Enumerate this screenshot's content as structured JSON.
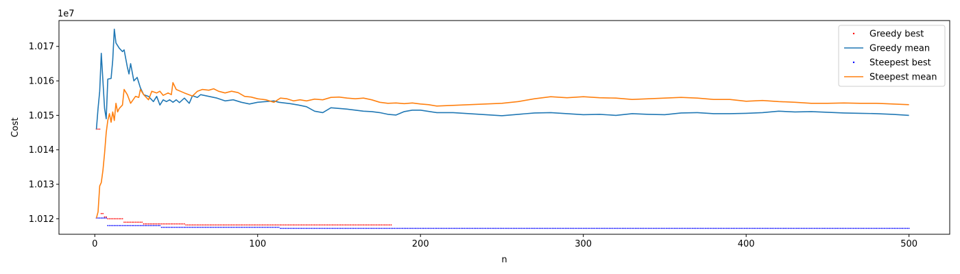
{
  "chart_data": {
    "type": "line",
    "title": "",
    "xlabel": "n",
    "ylabel": "Cost",
    "y_offset_label": "1e7",
    "xlim": [
      -22,
      525
    ],
    "ylim": [
      10115500,
      10177500
    ],
    "x_ticks": [
      0,
      100,
      200,
      300,
      400,
      500
    ],
    "x_tick_labels": [
      "0",
      "100",
      "200",
      "300",
      "400",
      "500"
    ],
    "y_ticks": [
      10120000,
      10130000,
      10140000,
      10150000,
      10160000,
      10170000
    ],
    "y_tick_labels": [
      "1.012",
      "1.013",
      "1.014",
      "1.015",
      "1.016",
      "1.017"
    ],
    "grid": false,
    "legend_position": "top-right",
    "series": [
      {
        "name": "Greedy best",
        "kind": "scatter",
        "color": "#ff0000",
        "steps": [
          [
            1,
            10146000
          ],
          [
            4,
            10121500
          ],
          [
            6,
            10120500
          ],
          [
            8,
            10120000
          ],
          [
            18,
            10119000
          ],
          [
            30,
            10118500
          ],
          [
            56,
            10118200
          ],
          [
            182,
            10118200
          ]
        ]
      },
      {
        "name": "Greedy mean",
        "kind": "line",
        "color": "#1f77b4",
        "points": [
          [
            1,
            10146000
          ],
          [
            2,
            10152000
          ],
          [
            3,
            10157000
          ],
          [
            4,
            10168000
          ],
          [
            5,
            10160000
          ],
          [
            6,
            10152000
          ],
          [
            7,
            10149000
          ],
          [
            8,
            10160500
          ],
          [
            10,
            10160700
          ],
          [
            11,
            10166000
          ],
          [
            12,
            10175000
          ],
          [
            13,
            10171000
          ],
          [
            15,
            10169500
          ],
          [
            17,
            10168500
          ],
          [
            18,
            10169000
          ],
          [
            20,
            10164000
          ],
          [
            21,
            10162000
          ],
          [
            22,
            10165000
          ],
          [
            24,
            10160000
          ],
          [
            26,
            10161000
          ],
          [
            28,
            10158000
          ],
          [
            30,
            10156000
          ],
          [
            33,
            10155500
          ],
          [
            36,
            10154000
          ],
          [
            38,
            10155500
          ],
          [
            40,
            10153000
          ],
          [
            42,
            10154500
          ],
          [
            44,
            10154000
          ],
          [
            46,
            10154500
          ],
          [
            48,
            10153800
          ],
          [
            50,
            10154500
          ],
          [
            52,
            10153700
          ],
          [
            55,
            10155000
          ],
          [
            58,
            10153500
          ],
          [
            60,
            10155700
          ],
          [
            63,
            10155200
          ],
          [
            65,
            10156000
          ],
          [
            70,
            10155500
          ],
          [
            75,
            10155000
          ],
          [
            80,
            10154200
          ],
          [
            85,
            10154500
          ],
          [
            90,
            10153800
          ],
          [
            95,
            10153300
          ],
          [
            100,
            10153800
          ],
          [
            105,
            10154000
          ],
          [
            110,
            10154200
          ],
          [
            113,
            10153800
          ],
          [
            120,
            10153400
          ],
          [
            125,
            10153000
          ],
          [
            130,
            10152500
          ],
          [
            135,
            10151200
          ],
          [
            140,
            10150800
          ],
          [
            145,
            10152200
          ],
          [
            150,
            10152000
          ],
          [
            155,
            10151800
          ],
          [
            160,
            10151500
          ],
          [
            165,
            10151200
          ],
          [
            170,
            10151100
          ],
          [
            175,
            10150800
          ],
          [
            180,
            10150300
          ],
          [
            185,
            10150100
          ],
          [
            190,
            10151100
          ],
          [
            195,
            10151500
          ],
          [
            200,
            10151500
          ],
          [
            210,
            10150800
          ],
          [
            220,
            10150800
          ],
          [
            230,
            10150500
          ],
          [
            240,
            10150200
          ],
          [
            250,
            10149900
          ],
          [
            260,
            10150300
          ],
          [
            270,
            10150700
          ],
          [
            280,
            10150800
          ],
          [
            290,
            10150500
          ],
          [
            300,
            10150200
          ],
          [
            310,
            10150300
          ],
          [
            320,
            10150000
          ],
          [
            330,
            10150500
          ],
          [
            340,
            10150300
          ],
          [
            350,
            10150200
          ],
          [
            360,
            10150700
          ],
          [
            370,
            10150800
          ],
          [
            380,
            10150500
          ],
          [
            390,
            10150500
          ],
          [
            400,
            10150600
          ],
          [
            410,
            10150800
          ],
          [
            420,
            10151200
          ],
          [
            430,
            10151000
          ],
          [
            440,
            10151100
          ],
          [
            450,
            10150900
          ],
          [
            460,
            10150700
          ],
          [
            470,
            10150600
          ],
          [
            480,
            10150500
          ],
          [
            490,
            10150300
          ],
          [
            500,
            10150000
          ]
        ]
      },
      {
        "name": "Steepest best",
        "kind": "scatter",
        "color": "#0000ff",
        "steps": [
          [
            1,
            10120200
          ],
          [
            8,
            10118000
          ],
          [
            41,
            10117500
          ],
          [
            114,
            10117200
          ],
          [
            500,
            10117200
          ]
        ]
      },
      {
        "name": "Steepest mean",
        "kind": "line",
        "color": "#ff7f0e",
        "points": [
          [
            1,
            10120200
          ],
          [
            2,
            10122000
          ],
          [
            3,
            10129500
          ],
          [
            4,
            10130500
          ],
          [
            5,
            10134000
          ],
          [
            6,
            10139000
          ],
          [
            7,
            10145000
          ],
          [
            8,
            10148500
          ],
          [
            9,
            10150500
          ],
          [
            10,
            10148000
          ],
          [
            11,
            10151000
          ],
          [
            12,
            10148500
          ],
          [
            13,
            10153500
          ],
          [
            14,
            10151000
          ],
          [
            15,
            10152000
          ],
          [
            17,
            10153000
          ],
          [
            18,
            10157500
          ],
          [
            20,
            10156000
          ],
          [
            22,
            10153500
          ],
          [
            25,
            10155500
          ],
          [
            27,
            10155200
          ],
          [
            28,
            10157500
          ],
          [
            30,
            10156000
          ],
          [
            33,
            10154500
          ],
          [
            35,
            10157000
          ],
          [
            38,
            10156500
          ],
          [
            40,
            10157000
          ],
          [
            42,
            10155800
          ],
          [
            45,
            10156500
          ],
          [
            47,
            10156000
          ],
          [
            48,
            10159500
          ],
          [
            50,
            10157500
          ],
          [
            55,
            10156500
          ],
          [
            60,
            10155600
          ],
          [
            63,
            10157000
          ],
          [
            66,
            10157500
          ],
          [
            70,
            10157300
          ],
          [
            73,
            10157700
          ],
          [
            76,
            10157000
          ],
          [
            80,
            10156500
          ],
          [
            84,
            10157000
          ],
          [
            88,
            10156600
          ],
          [
            92,
            10155500
          ],
          [
            96,
            10155300
          ],
          [
            100,
            10154800
          ],
          [
            105,
            10154500
          ],
          [
            110,
            10153800
          ],
          [
            114,
            10155000
          ],
          [
            118,
            10154800
          ],
          [
            122,
            10154200
          ],
          [
            126,
            10154500
          ],
          [
            130,
            10154200
          ],
          [
            135,
            10154700
          ],
          [
            140,
            10154500
          ],
          [
            145,
            10155200
          ],
          [
            150,
            10155300
          ],
          [
            155,
            10155000
          ],
          [
            160,
            10154800
          ],
          [
            165,
            10155000
          ],
          [
            170,
            10154500
          ],
          [
            175,
            10153800
          ],
          [
            180,
            10153500
          ],
          [
            185,
            10153600
          ],
          [
            190,
            10153400
          ],
          [
            195,
            10153600
          ],
          [
            200,
            10153300
          ],
          [
            205,
            10153100
          ],
          [
            210,
            10152700
          ],
          [
            215,
            10152800
          ],
          [
            220,
            10152900
          ],
          [
            230,
            10153100
          ],
          [
            240,
            10153300
          ],
          [
            250,
            10153500
          ],
          [
            260,
            10154000
          ],
          [
            270,
            10154800
          ],
          [
            280,
            10155400
          ],
          [
            290,
            10155100
          ],
          [
            300,
            10155400
          ],
          [
            310,
            10155100
          ],
          [
            320,
            10155000
          ],
          [
            330,
            10154600
          ],
          [
            340,
            10154800
          ],
          [
            350,
            10155000
          ],
          [
            360,
            10155200
          ],
          [
            370,
            10155000
          ],
          [
            380,
            10154600
          ],
          [
            390,
            10154600
          ],
          [
            400,
            10154100
          ],
          [
            410,
            10154300
          ],
          [
            420,
            10154000
          ],
          [
            430,
            10153800
          ],
          [
            440,
            10153500
          ],
          [
            450,
            10153500
          ],
          [
            460,
            10153600
          ],
          [
            470,
            10153500
          ],
          [
            480,
            10153500
          ],
          [
            490,
            10153300
          ],
          [
            500,
            10153100
          ]
        ]
      }
    ]
  }
}
